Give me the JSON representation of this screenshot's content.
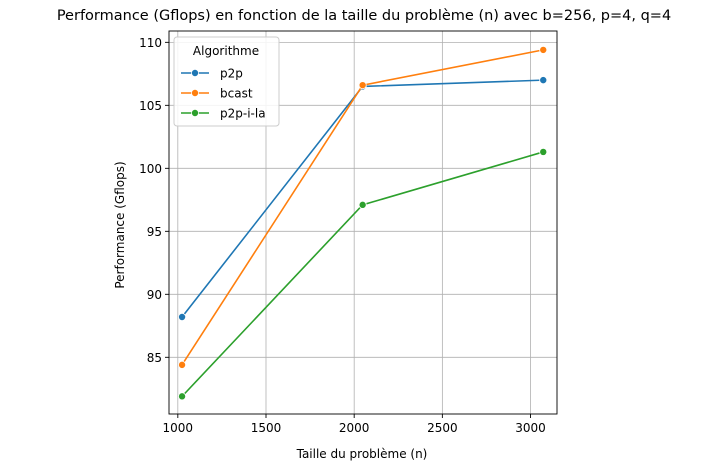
{
  "chart_data": {
    "type": "line",
    "title": "Performance (Gflops) en fonction de la taille du problème (n) avec b=256, p=4, q=4",
    "xlabel": "Taille du problème (n)",
    "ylabel": "Performance (Gflops)",
    "xlim": [
      950,
      3150
    ],
    "ylim": [
      80.5,
      110.9
    ],
    "xticks": [
      1000,
      1500,
      2000,
      2500,
      3000
    ],
    "yticks": [
      85,
      90,
      95,
      100,
      105,
      110
    ],
    "grid": true,
    "legend": {
      "title": "Algorithme",
      "position": "top-left"
    },
    "x": [
      1024,
      2048,
      3072
    ],
    "series": [
      {
        "name": "p2p",
        "color": "#1f77b4",
        "values": [
          88.2,
          106.5,
          107.0
        ]
      },
      {
        "name": "bcast",
        "color": "#ff7f0e",
        "values": [
          84.4,
          106.6,
          109.4
        ]
      },
      {
        "name": "p2p-i-la",
        "color": "#2ca02c",
        "values": [
          81.9,
          97.1,
          101.3
        ]
      }
    ]
  }
}
